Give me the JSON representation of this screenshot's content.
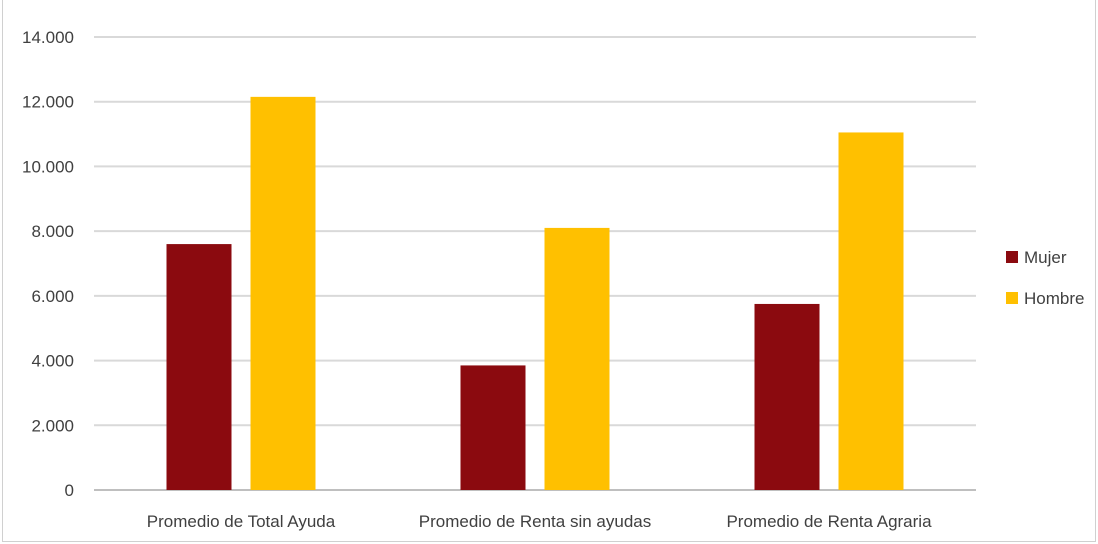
{
  "chart_data": {
    "type": "bar",
    "categories": [
      "Promedio de Total Ayuda",
      "Promedio de Renta sin ayudas",
      "Promedio de Renta Agraria"
    ],
    "series": [
      {
        "name": "Mujer",
        "color": "#8b0a0f",
        "values": [
          7600,
          3850,
          5750
        ]
      },
      {
        "name": "Hombre",
        "color": "#ffc000",
        "values": [
          12150,
          8100,
          11050
        ]
      }
    ],
    "ylim": [
      0,
      14000
    ],
    "yticks": [
      0,
      2000,
      4000,
      6000,
      8000,
      10000,
      12000,
      14000
    ],
    "ytick_labels": [
      "0",
      "2.000",
      "4.000",
      "6.000",
      "8.000",
      "10.000",
      "12.000",
      "14.000"
    ],
    "grid": true,
    "legend_position": "right",
    "title": "",
    "xlabel": "",
    "ylabel": ""
  }
}
